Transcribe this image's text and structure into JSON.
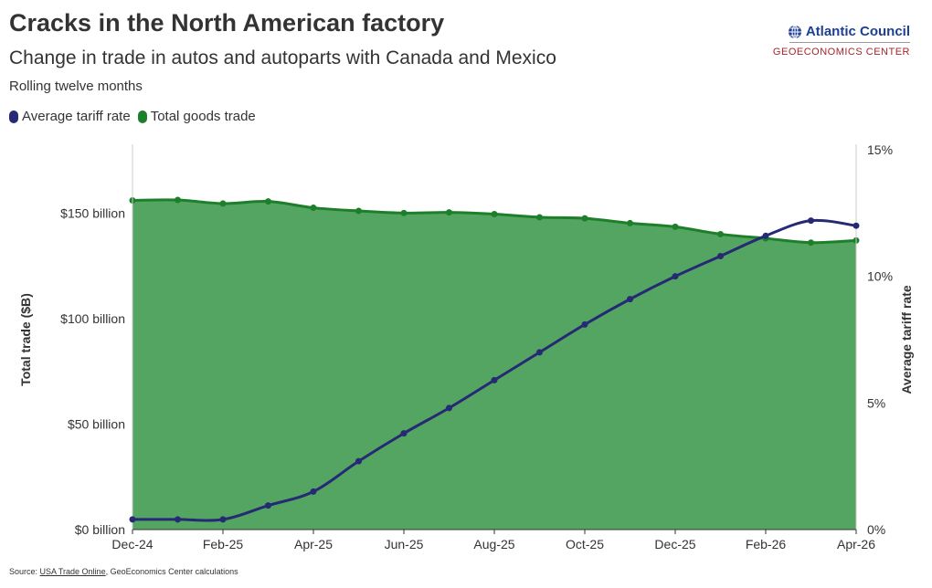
{
  "title": "Cracks in the North American factory",
  "subtitle": "Change in trade in autos and autoparts with Canada and Mexico",
  "note": "Rolling twelve months",
  "logo": {
    "name": "Atlantic Council",
    "center": "GEOECONOMICS CENTER",
    "icon": "globe-icon"
  },
  "source": {
    "prefix": "Source: ",
    "link": "USA Trade Online",
    "suffix": ", GeoEconomics Center calculations"
  },
  "colors": {
    "tariff": "#262a75",
    "trade_line": "#1d7f2a",
    "trade_fill": "#54a561"
  },
  "chart_data": {
    "type": "area",
    "categories": [
      "Dec-24",
      "Jan-25",
      "Feb-25",
      "Mar-25",
      "Apr-25",
      "May-25",
      "Jun-25",
      "Jul-25",
      "Aug-25",
      "Sep-25",
      "Oct-25",
      "Nov-25",
      "Dec-25",
      "Jan-26",
      "Feb-26",
      "Mar-26",
      "Apr-26"
    ],
    "x_tick_labels": [
      "Dec-24",
      "Feb-25",
      "Apr-25",
      "Jun-25",
      "Aug-25",
      "Oct-25",
      "Dec-25",
      "Feb-26",
      "Apr-26"
    ],
    "series": [
      {
        "name": "Total goods trade",
        "axis": "left",
        "kind": "area",
        "values": [
          156,
          156.2,
          154.5,
          155.5,
          152.5,
          151,
          150,
          150.3,
          149.5,
          148,
          147.5,
          145.2,
          143.5,
          140,
          138,
          136,
          137
        ]
      },
      {
        "name": "Average tariff rate",
        "axis": "right",
        "kind": "line",
        "values": [
          0.4,
          0.4,
          0.4,
          0.95,
          1.5,
          2.7,
          3.8,
          4.8,
          5.9,
          7.0,
          8.1,
          9.1,
          10.0,
          10.8,
          11.6,
          12.2,
          12.0
        ]
      }
    ],
    "y_left": {
      "label": "Total trade ($B)",
      "range": [
        0,
        180
      ],
      "ticks": [
        0,
        50,
        100,
        150
      ],
      "tick_labels": [
        "$0 billion",
        "$50 billion",
        "$100 billion",
        "$150 billion"
      ]
    },
    "y_right": {
      "label": "Average tariff rate",
      "range": [
        0,
        15
      ],
      "ticks": [
        0,
        5,
        10,
        15
      ],
      "tick_labels": [
        "0%",
        "5%",
        "10%",
        "15%"
      ]
    },
    "legend": [
      "Average tariff rate",
      "Total goods trade"
    ],
    "legend_position": "top-left",
    "grid": false
  }
}
